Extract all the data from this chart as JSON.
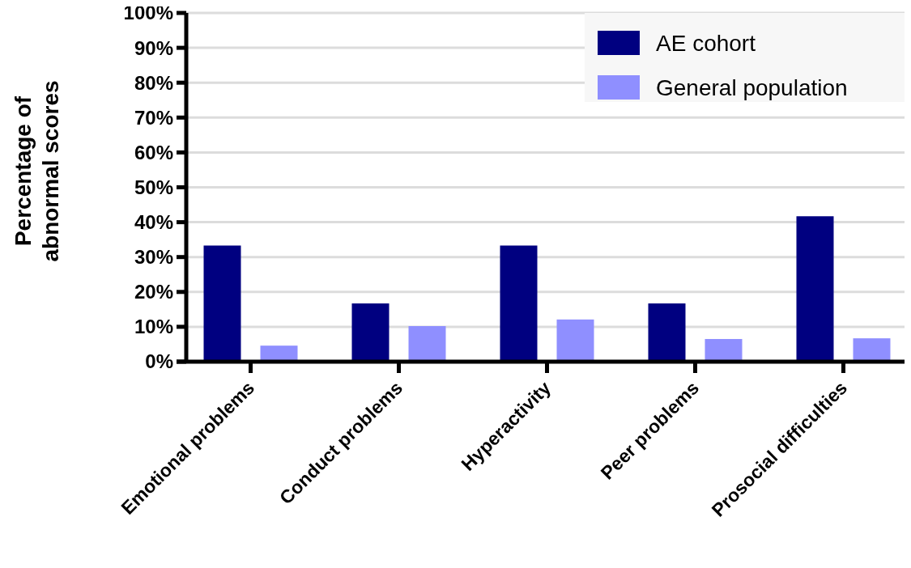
{
  "chart_data": {
    "type": "bar",
    "ylabel": "Percentage of abnormal scores",
    "categories": [
      "Emotional problems",
      "Conduct problems",
      "Hyperactivity",
      "Peer problems",
      "Prosocial difficulties"
    ],
    "series": [
      {
        "name": "AE cohort",
        "color": "#000080",
        "values": [
          33.3,
          16.7,
          33.3,
          16.7,
          41.7
        ]
      },
      {
        "name": "General population",
        "color": "#8f8fff",
        "values": [
          4.6,
          10.2,
          12.1,
          6.5,
          6.7
        ]
      }
    ],
    "ylim": [
      0,
      100
    ],
    "yticks": [
      {
        "value": 0,
        "label": "0%"
      },
      {
        "value": 10,
        "label": "10%"
      },
      {
        "value": 20,
        "label": "20%"
      },
      {
        "value": 30,
        "label": "30%"
      },
      {
        "value": 40,
        "label": "40%"
      },
      {
        "value": 50,
        "label": "50%"
      },
      {
        "value": 60,
        "label": "60%"
      },
      {
        "value": 70,
        "label": "70%"
      },
      {
        "value": 80,
        "label": "80%"
      },
      {
        "value": 90,
        "label": "90%"
      },
      {
        "value": 100,
        "label": "100%"
      }
    ],
    "grid": "y",
    "legend": "top right"
  }
}
